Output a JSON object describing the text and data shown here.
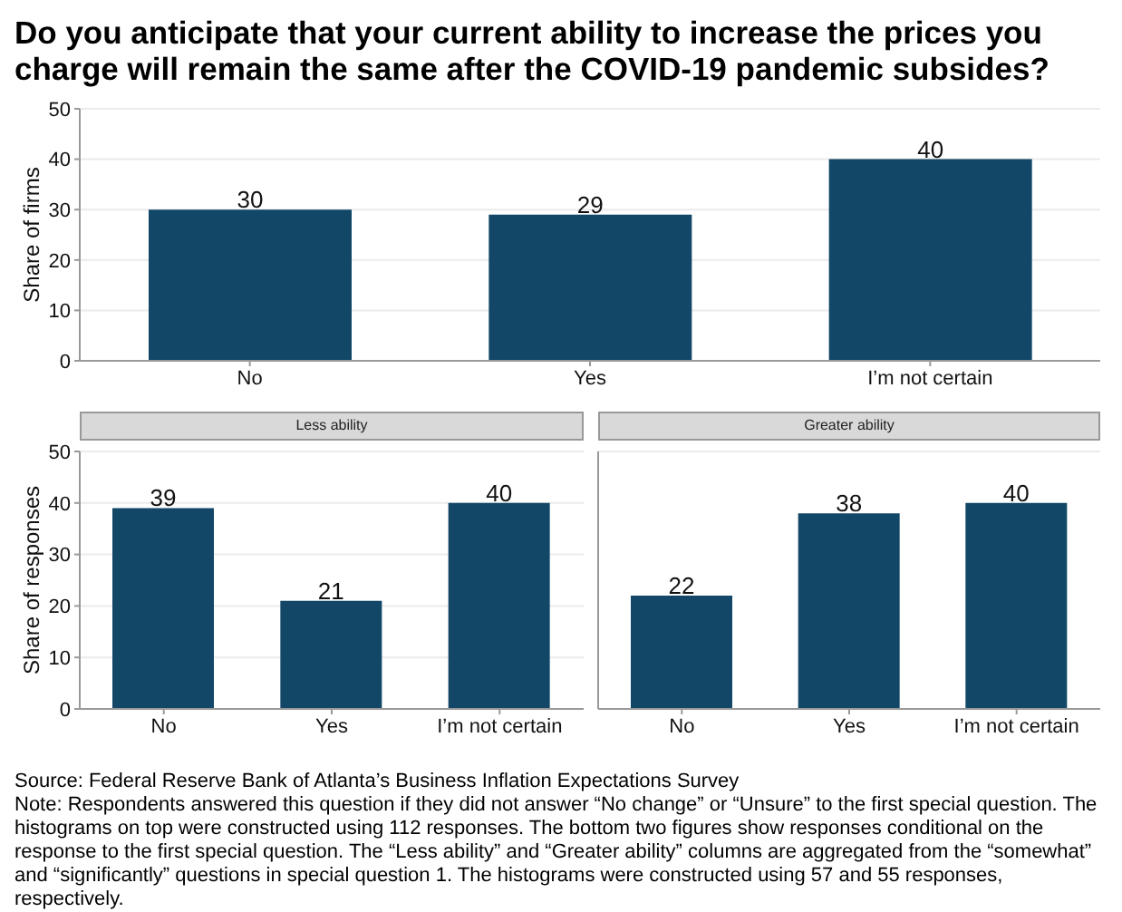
{
  "chart_data": [
    {
      "type": "bar",
      "title": "Do you anticipate that your current ability to increase the prices you charge will remain the same after the COVID-19 pandemic subsides?",
      "ylabel": "Share of firms",
      "categories": [
        "No",
        "Yes",
        "I’m not certain"
      ],
      "values": [
        30,
        29,
        40
      ],
      "color": "#124768",
      "ylim": [
        0,
        50
      ],
      "yticks": [
        0,
        10,
        20,
        30,
        40,
        50
      ],
      "grid": "y",
      "data_labels": true,
      "annotations": [
        "Source: Federal Reserve Bank of Atlanta’s Business Inflation Expectations Survey",
        "Note: Respondents answered this question if they did not answer “No change” or “Unsure” to the first special question. The histograms on top were constructed using 112 responses. The bottom two figures show responses conditional on the response to the first special question. The “Less ability” and “Greater ability” columns are aggregated from the “somewhat” and “significantly” questions in special question 1. The histograms were constructed using 57 and 55 responses, respectively."
      ]
    },
    {
      "type": "bar",
      "title": "Less ability",
      "ylabel": "Share of responses",
      "categories": [
        "No",
        "Yes",
        "I’m not certain"
      ],
      "values": [
        39,
        21,
        40
      ],
      "color": "#124768",
      "ylim": [
        0,
        50
      ],
      "yticks": [
        0,
        10,
        20,
        30,
        40,
        50
      ],
      "grid": "y",
      "data_labels": true
    },
    {
      "type": "bar",
      "title": "Greater ability",
      "categories": [
        "No",
        "Yes",
        "I’m not certain"
      ],
      "values": [
        22,
        38,
        40
      ],
      "color": "#124768",
      "ylim": [
        0,
        50
      ],
      "yticks": [
        0,
        10,
        20,
        30,
        40,
        50
      ],
      "grid": "y",
      "data_labels": true,
      "tick_labels": "x"
    }
  ]
}
